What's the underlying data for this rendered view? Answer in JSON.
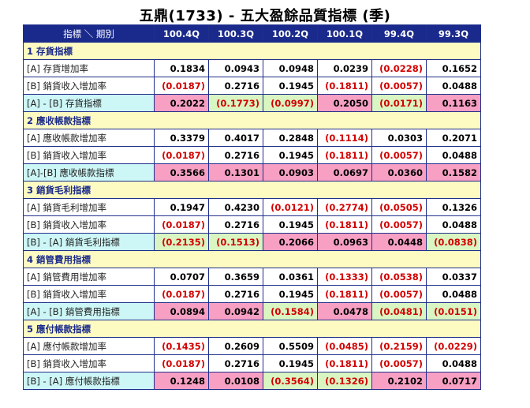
{
  "title": "五鼎(1733) -  五大盈餘品質指標 (季)",
  "header": {
    "first": "指標 ＼ 期別",
    "periods": [
      "100.4Q",
      "100.3Q",
      "100.2Q",
      "100.1Q",
      "99.4Q",
      "99.3Q"
    ]
  },
  "colors": {
    "header_bg": "#1a2a8c",
    "section_bg": "#fefbc2",
    "index_label_bg": "#cdf6f6",
    "pink": "#f7a0c4",
    "green": "#d9f5c2",
    "negative_text": "#d40000"
  },
  "sections": [
    {
      "title": "1 存貨指標",
      "rows": [
        {
          "label": "[A] 存貨增加率",
          "index": false,
          "values": [
            "0.1834",
            "0.0943",
            "0.0948",
            "0.0239",
            "(0.0228)",
            "0.1652"
          ]
        },
        {
          "label": "[B] 銷貨收入增加率",
          "index": false,
          "values": [
            "(0.0187)",
            "0.2716",
            "0.1945",
            "(0.1811)",
            "(0.0057)",
            "0.0488"
          ]
        },
        {
          "label": "[A] - [B] 存貨指標",
          "index": true,
          "values": [
            "0.2022",
            "(0.1773)",
            "(0.0997)",
            "0.2050",
            "(0.0171)",
            "0.1163"
          ]
        }
      ]
    },
    {
      "title": "2 應收帳款指標",
      "rows": [
        {
          "label": "[A] 應收帳款增加率",
          "index": false,
          "values": [
            "0.3379",
            "0.4017",
            "0.2848",
            "(0.1114)",
            "0.0303",
            "0.2071"
          ]
        },
        {
          "label": "[B] 銷貨收入增加率",
          "index": false,
          "values": [
            "(0.0187)",
            "0.2716",
            "0.1945",
            "(0.1811)",
            "(0.0057)",
            "0.0488"
          ]
        },
        {
          "label": "[A]-[B] 應收帳款指標",
          "index": true,
          "values": [
            "0.3566",
            "0.1301",
            "0.0903",
            "0.0697",
            "0.0360",
            "0.1582"
          ]
        }
      ]
    },
    {
      "title": "3 銷貨毛利指標",
      "rows": [
        {
          "label": "[A] 銷貨毛利增加率",
          "index": false,
          "values": [
            "0.1947",
            "0.4230",
            "(0.0121)",
            "(0.2774)",
            "(0.0505)",
            "0.1326"
          ]
        },
        {
          "label": "[B] 銷貨收入增加率",
          "index": false,
          "values": [
            "(0.0187)",
            "0.2716",
            "0.1945",
            "(0.1811)",
            "(0.0057)",
            "0.0488"
          ]
        },
        {
          "label": "[B] - [A] 銷貨毛利指標",
          "index": true,
          "values": [
            "(0.2135)",
            "(0.1513)",
            "0.2066",
            "0.0963",
            "0.0448",
            "(0.0838)"
          ]
        }
      ]
    },
    {
      "title": "4 銷管費用指標",
      "rows": [
        {
          "label": "[A] 銷管費用增加率",
          "index": false,
          "values": [
            "0.0707",
            "0.3659",
            "0.0361",
            "(0.1333)",
            "(0.0538)",
            "0.0337"
          ]
        },
        {
          "label": "[B] 銷貨收入增加率",
          "index": false,
          "values": [
            "(0.0187)",
            "0.2716",
            "0.1945",
            "(0.1811)",
            "(0.0057)",
            "0.0488"
          ]
        },
        {
          "label": "[A] - [B] 銷管費用指標",
          "index": true,
          "values": [
            "0.0894",
            "0.0942",
            "(0.1584)",
            "0.0478",
            "(0.0481)",
            "(0.0151)"
          ]
        }
      ]
    },
    {
      "title": "5 應付帳款指標",
      "rows": [
        {
          "label": "[A] 應付帳款增加率",
          "index": false,
          "values": [
            "(0.1435)",
            "0.2609",
            "0.5509",
            "(0.0485)",
            "(0.2159)",
            "(0.0229)"
          ]
        },
        {
          "label": "[B] 銷貨收入增加率",
          "index": false,
          "values": [
            "(0.0187)",
            "0.2716",
            "0.1945",
            "(0.1811)",
            "(0.0057)",
            "0.0488"
          ]
        },
        {
          "label": "[B] - [A] 應付帳款指標",
          "index": true,
          "values": [
            "0.1248",
            "0.0108",
            "(0.3564)",
            "(0.1326)",
            "0.2102",
            "0.0717"
          ]
        }
      ]
    }
  ]
}
